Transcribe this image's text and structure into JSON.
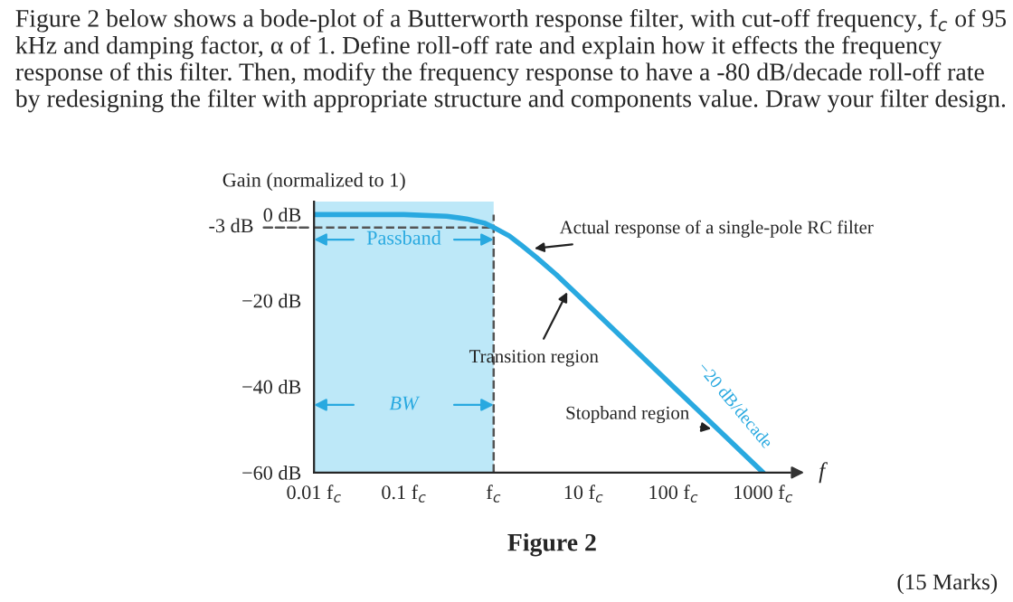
{
  "chart_data": {
    "type": "line",
    "title": "Figure 2 below shows a bode-plot of a Butterworth response filter, with cut-off frequency, f$_{c}$ of 95 kHz and damping factor, α of 1. Define roll-off rate and explain how it effects the frequency response of this filter. Then, modify the frequency response to have a -80 dB/decade roll-off rate by redesigning the filter with appropriate structure and components value. Draw your filter design.",
    "ylabel": "Gain (normalized to 1)",
    "xlabel": "f",
    "log": "x",
    "x": [
      0.01,
      0.1,
      0.3,
      0.5,
      0.8,
      1,
      1.5,
      2,
      3,
      5,
      10,
      100,
      1000
    ],
    "series": [
      {
        "color": "#29a9e0",
        "values": [
          0,
          0,
          -0.4,
          -1,
          -2,
          -3,
          -5,
          -7,
          -10,
          -14,
          -20,
          -40,
          -60
        ]
      }
    ],
    "xlim": [
      0.01,
      2000
    ],
    "ylim": [
      -60,
      3
    ],
    "xticks": [
      {
        "value": 0.01,
        "label": "0.01 f$_{c}$"
      },
      {
        "value": 0.1,
        "label": "0.1 f$_{c}$"
      },
      {
        "value": 1,
        "label": "f$_{c}$"
      },
      {
        "value": 10,
        "label": "10 f$_{c}$"
      },
      {
        "value": 100,
        "label": "100 f$_{c}$"
      },
      {
        "value": 1000,
        "label": "1000 f$_{c}$"
      }
    ],
    "yticks": [
      {
        "value": 0,
        "label": "0 dB"
      },
      {
        "value": -20,
        "label": "−20 dB"
      },
      {
        "value": -40,
        "label": "−40 dB"
      },
      {
        "value": -60,
        "label": "−60 dB"
      }
    ],
    "ref_lines": [
      {
        "axis": "y",
        "value": -3,
        "label": "-3 dB",
        "color": "#555555",
        "line_style": "dashed"
      },
      {
        "axis": "x",
        "value": 1,
        "color": "#555555",
        "line_style": "dashed"
      }
    ],
    "bands": [
      {
        "axis": "x",
        "from": 0.01,
        "to": 1,
        "color": "#bde8f8"
      }
    ],
    "grid": false,
    "legend": false,
    "marker": "none",
    "line_style": "solid",
    "annotations": [
      "Figure 2",
      "(15 Marks)",
      "Passband",
      "BW",
      {
        "text": "Actual response of a single-pole RC filter",
        "x": 2.5,
        "y": -8
      },
      {
        "text": "Transition region",
        "x": 7,
        "y": -17
      },
      {
        "text": "Stopband region",
        "x": 300,
        "y": -50
      },
      {
        "text": "−20 dB/decade",
        "x": 250,
        "y": -48
      }
    ]
  }
}
